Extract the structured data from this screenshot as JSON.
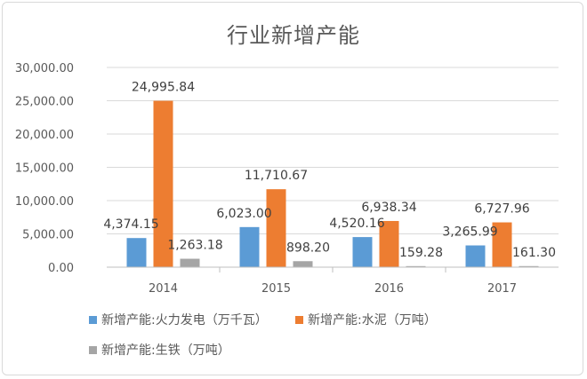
{
  "chart_data": {
    "type": "bar",
    "title": "行业新增产能",
    "categories": [
      "2014",
      "2015",
      "2016",
      "2017"
    ],
    "series": [
      {
        "name": "新增产能:火力发电（万千瓦）",
        "color": "#5b9bd5",
        "values": [
          4374.15,
          6023.0,
          4520.16,
          3265.99
        ],
        "labels": [
          "4,374.15",
          "6,023.00",
          "4,520.16",
          "3,265.99"
        ]
      },
      {
        "name": "新增产能:水泥（万吨）",
        "color": "#ed7d31",
        "values": [
          24995.84,
          11710.67,
          6938.34,
          6727.96
        ],
        "labels": [
          "24,995.84",
          "11,710.67",
          "6,938.34",
          "6,727.96"
        ]
      },
      {
        "name": "新增产能:生铁（万吨）",
        "color": "#a5a5a5",
        "values": [
          1263.18,
          898.2,
          159.28,
          161.3
        ],
        "labels": [
          "1,263.18",
          "898.20",
          "159.28",
          "161.30"
        ]
      }
    ],
    "ylim": [
      0,
      30000
    ],
    "yticks": [
      "0.00",
      "5,000.00",
      "10,000.00",
      "15,000.00",
      "20,000.00",
      "25,000.00",
      "30,000.00"
    ],
    "grid": true,
    "legend_position": "bottom"
  }
}
